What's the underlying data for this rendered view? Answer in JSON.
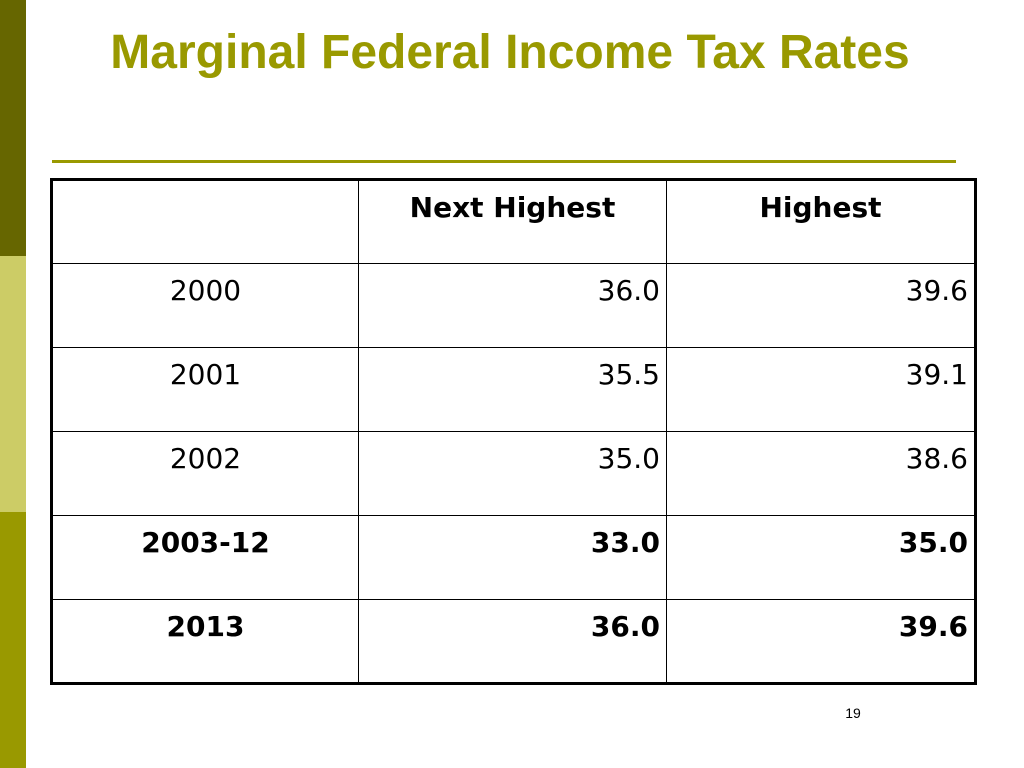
{
  "colors": {
    "title": "#999900",
    "accent_rule": "#999900",
    "sidebar_top": "#666600",
    "sidebar_middle": "#cccc66",
    "sidebar_bottom": "#999900"
  },
  "slide": {
    "title": "Marginal Federal Income Tax Rates",
    "page_number": "19"
  },
  "table": {
    "headers": [
      "",
      "Next Highest",
      "Highest"
    ],
    "rows": [
      {
        "year": "2000",
        "next_highest": "36.0",
        "highest": "39.6",
        "bold": false
      },
      {
        "year": "2001",
        "next_highest": "35.5",
        "highest": "39.1",
        "bold": false
      },
      {
        "year": "2002",
        "next_highest": "35.0",
        "highest": "38.6",
        "bold": false
      },
      {
        "year": "2003-12",
        "next_highest": "33.0",
        "highest": "35.0",
        "bold": true
      },
      {
        "year": "2013",
        "next_highest": "36.0",
        "highest": "39.6",
        "bold": true
      }
    ]
  }
}
